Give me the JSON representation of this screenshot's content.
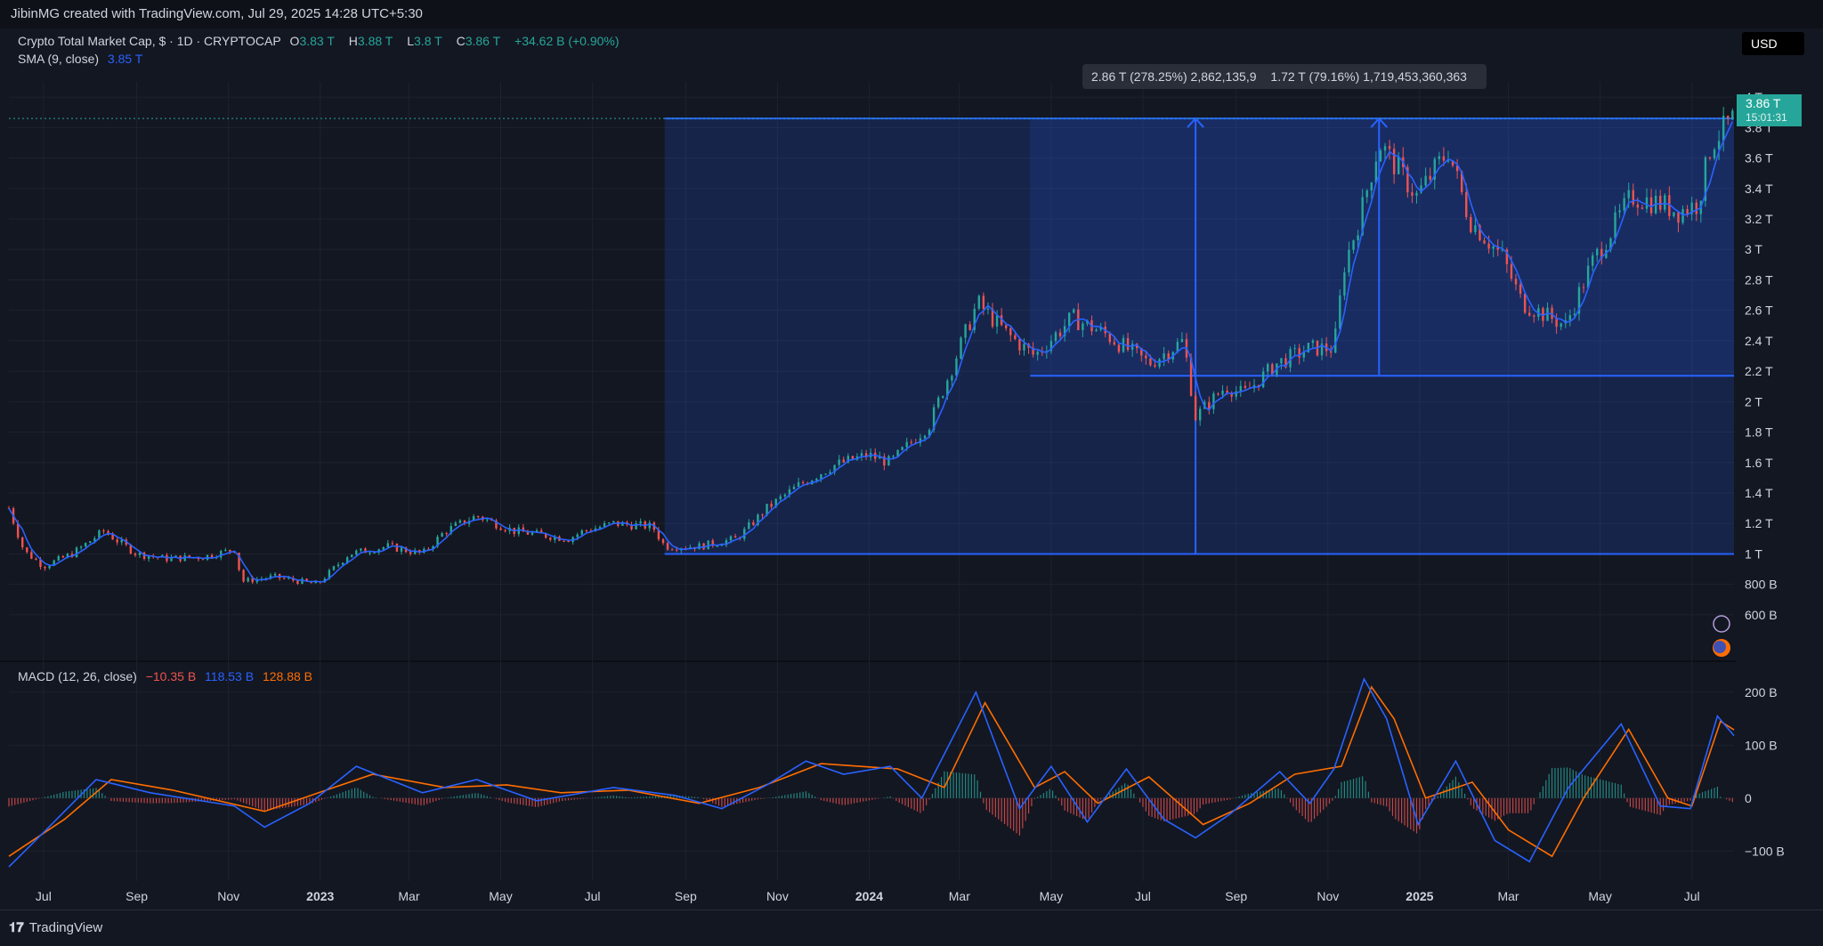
{
  "header": {
    "attribution": "JibinMG created with TradingView.com, Jul 29, 2025 14:28 UTC+5:30"
  },
  "legend": {
    "symbol": "Crypto Total Market Cap, $ · 1D · CRYPTOCAP",
    "o_key": "O",
    "o_val": "3.83 T",
    "h_key": "H",
    "h_val": "3.88 T",
    "l_key": "L",
    "l_val": "3.8 T",
    "c_key": "C",
    "c_val": "3.86 T",
    "change": "+34.62 B (+0.90%)",
    "sma_label": "SMA (9, close)",
    "sma_val": "3.85 T",
    "macd_label": "MACD (12, 26, close)",
    "macd_hist": "−10.35 B",
    "macd_line": "118.53 B",
    "macd_signal": "128.88 B"
  },
  "currency_button": "USD",
  "price_tag": {
    "price": "3.86 T",
    "countdown": "15:01:31"
  },
  "measure_tooltip": {
    "first": "2.86 T (278.25%) 2,862,135,9",
    "second": "1.72 T (79.16%) 1,719,453,360,363"
  },
  "footer": {
    "logo_text": "TradingView"
  },
  "colors": {
    "background": "#131722",
    "up": "#26a69a",
    "down": "#ef5350",
    "sma": "#2962ff",
    "macd_line": "#2962ff",
    "macd_signal": "#ff6d00",
    "measure": "#2962ff"
  },
  "chart_data": [
    {
      "type": "line",
      "series_type": "candlestick",
      "y_axis_labels": [
        "4 T",
        "3.8 T",
        "3.6 T",
        "3.4 T",
        "3.2 T",
        "3 T",
        "2.8 T",
        "2.6 T",
        "2.4 T",
        "2.2 T",
        "2 T",
        "1.8 T",
        "1.6 T",
        "1.4 T",
        "1.2 T",
        "1 T",
        "800 B",
        "600 B"
      ],
      "y_axis_values": [
        4.0,
        3.8,
        3.6,
        3.4,
        3.2,
        3.0,
        2.8,
        2.6,
        2.4,
        2.2,
        2.0,
        1.8,
        1.6,
        1.4,
        1.2,
        1.0,
        0.8,
        0.6
      ],
      "ylim": [
        0.5,
        4.1
      ],
      "x_axis_labels": [
        "Jul",
        "Sep",
        "Nov",
        "2023",
        "Mar",
        "May",
        "Jul",
        "Sep",
        "Nov",
        "2024",
        "Mar",
        "May",
        "Jul",
        "Sep",
        "Nov",
        "2025",
        "Mar",
        "May",
        "Jul"
      ],
      "x_axis_dates": [
        "2022-07-01",
        "2022-09-01",
        "2022-11-01",
        "2023-01-01",
        "2023-03-01",
        "2023-05-01",
        "2023-07-01",
        "2023-09-01",
        "2023-11-01",
        "2024-01-01",
        "2024-03-01",
        "2024-05-01",
        "2024-07-01",
        "2024-09-01",
        "2024-11-01",
        "2025-01-01",
        "2025-03-01",
        "2025-05-01",
        "2025-07-01"
      ],
      "xlim": [
        "2022-06-08",
        "2025-07-29"
      ],
      "series": [
        {
          "values_unit": "T",
          "x": [
            "2022-06-08",
            "2022-06-18",
            "2022-07-01",
            "2022-07-20",
            "2022-08-10",
            "2022-09-01",
            "2022-09-20",
            "2022-10-15",
            "2022-11-05",
            "2022-11-10",
            "2022-12-01",
            "2022-12-30",
            "2023-01-20",
            "2023-02-15",
            "2023-03-10",
            "2023-03-25",
            "2023-04-15",
            "2023-05-10",
            "2023-06-15",
            "2023-06-25",
            "2023-07-15",
            "2023-08-10",
            "2023-08-18",
            "2023-09-10",
            "2023-10-05",
            "2023-10-25",
            "2023-11-15",
            "2023-12-08",
            "2023-12-31",
            "2024-01-15",
            "2024-02-10",
            "2024-02-28",
            "2024-03-13",
            "2024-04-01",
            "2024-04-20",
            "2024-05-15",
            "2024-06-05",
            "2024-07-05",
            "2024-07-28",
            "2024-08-05",
            "2024-08-25",
            "2024-09-06",
            "2024-09-28",
            "2024-10-20",
            "2024-11-05",
            "2024-11-12",
            "2024-11-22",
            "2024-12-05",
            "2024-12-16",
            "2024-12-30",
            "2025-01-20",
            "2025-02-03",
            "2025-02-25",
            "2025-03-10",
            "2025-04-08",
            "2025-04-25",
            "2025-05-22",
            "2025-06-10",
            "2025-06-22",
            "2025-07-05",
            "2025-07-14",
            "2025-07-29"
          ],
          "close": [
            1.3,
            1.02,
            0.92,
            1.0,
            1.15,
            1.0,
            0.97,
            0.98,
            1.03,
            0.82,
            0.85,
            0.8,
            1.0,
            1.05,
            1.0,
            1.15,
            1.25,
            1.15,
            1.1,
            1.15,
            1.2,
            1.18,
            1.05,
            1.05,
            1.1,
            1.3,
            1.45,
            1.58,
            1.65,
            1.6,
            1.85,
            2.3,
            2.65,
            2.45,
            2.3,
            2.55,
            2.45,
            2.25,
            2.4,
            1.9,
            2.1,
            2.05,
            2.25,
            2.35,
            2.35,
            2.9,
            3.2,
            3.7,
            3.55,
            3.35,
            3.65,
            3.2,
            2.95,
            2.65,
            2.5,
            2.9,
            3.35,
            3.3,
            3.25,
            3.3,
            3.7,
            3.86
          ]
        }
      ],
      "measure": {
        "base": 1.0,
        "top": 3.86,
        "level2": 2.17,
        "first_label": "2.86 T (278.25%)",
        "second_label": "1.72 T (79.16%)"
      }
    },
    {
      "type": "line",
      "title": "MACD (12, 26, close)",
      "y_axis_labels": [
        "200 B",
        "100 B",
        "0",
        "−100 B"
      ],
      "y_axis_values": [
        200,
        100,
        0,
        -100
      ],
      "ylim": [
        -150,
        230
      ],
      "series": [
        {
          "name": "MACD",
          "x": [
            "2022-06-08",
            "2022-07-01",
            "2022-08-05",
            "2022-09-10",
            "2022-11-05",
            "2022-11-25",
            "2022-12-25",
            "2023-01-25",
            "2023-03-10",
            "2023-04-15",
            "2023-05-25",
            "2023-07-15",
            "2023-08-25",
            "2023-09-25",
            "2023-10-25",
            "2023-11-20",
            "2023-12-15",
            "2024-01-15",
            "2024-02-05",
            "2024-03-12",
            "2024-04-10",
            "2024-05-01",
            "2024-05-25",
            "2024-06-20",
            "2024-07-15",
            "2024-08-05",
            "2024-08-28",
            "2024-09-30",
            "2024-10-20",
            "2024-11-05",
            "2024-11-25",
            "2024-12-10",
            "2024-12-31",
            "2025-01-25",
            "2025-02-20",
            "2025-03-15",
            "2025-04-10",
            "2025-05-15",
            "2025-06-10",
            "2025-06-30",
            "2025-07-18",
            "2025-07-29"
          ],
          "values": [
            -130,
            -65,
            35,
            10,
            -15,
            -55,
            -10,
            60,
            10,
            35,
            -5,
            20,
            5,
            -20,
            25,
            70,
            45,
            60,
            0,
            200,
            -20,
            60,
            -45,
            55,
            -40,
            -75,
            -30,
            50,
            -10,
            55,
            225,
            150,
            -50,
            70,
            -80,
            -120,
            20,
            140,
            -15,
            -20,
            155,
            118
          ]
        },
        {
          "name": "Signal",
          "x": [
            "2022-06-08",
            "2022-07-15",
            "2022-08-15",
            "2022-09-25",
            "2022-11-25",
            "2023-01-10",
            "2023-02-05",
            "2023-03-25",
            "2023-05-05",
            "2023-06-10",
            "2023-07-25",
            "2023-09-10",
            "2023-10-20",
            "2023-11-30",
            "2024-01-20",
            "2024-02-20",
            "2024-03-18",
            "2024-04-20",
            "2024-05-10",
            "2024-06-01",
            "2024-07-05",
            "2024-08-10",
            "2024-09-10",
            "2024-10-10",
            "2024-11-10",
            "2024-11-30",
            "2024-12-15",
            "2025-01-05",
            "2025-02-05",
            "2025-03-01",
            "2025-03-30",
            "2025-04-20",
            "2025-05-20",
            "2025-06-15",
            "2025-07-01",
            "2025-07-20",
            "2025-07-29"
          ],
          "values": [
            -110,
            -40,
            35,
            15,
            -25,
            20,
            45,
            20,
            25,
            10,
            15,
            -10,
            20,
            65,
            55,
            20,
            180,
            20,
            50,
            -10,
            40,
            -50,
            -10,
            45,
            60,
            210,
            150,
            0,
            30,
            -60,
            -110,
            0,
            130,
            0,
            -15,
            145,
            129
          ]
        }
      ],
      "histogram_hint": "teal above zero, red below zero"
    }
  ]
}
